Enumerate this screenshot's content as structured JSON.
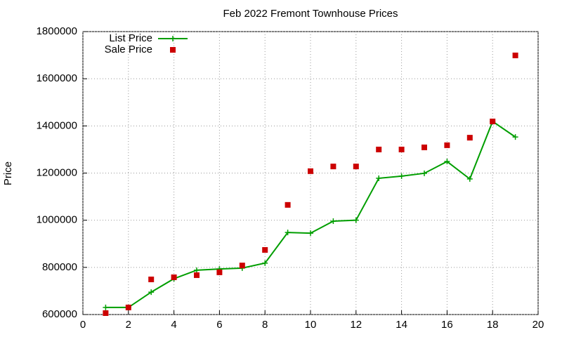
{
  "chart_data": {
    "type": "line",
    "title": "Feb 2022 Fremont Townhouse Prices",
    "y_label": "Price",
    "x": [
      1,
      2,
      3,
      4,
      5,
      6,
      7,
      8,
      9,
      10,
      11,
      12,
      13,
      14,
      15,
      16,
      17,
      18,
      19
    ],
    "series": [
      {
        "name": "List Price",
        "color": "#009e00",
        "line": true,
        "marker": "plus",
        "values": [
          630000,
          630000,
          695000,
          752000,
          788000,
          793000,
          797000,
          818000,
          948000,
          945000,
          996000,
          1000000,
          1178000,
          1187000,
          1199000,
          1249000,
          1175000,
          1419000,
          1353000
        ]
      },
      {
        "name": "Sale Price",
        "color": "#cc0000",
        "line": false,
        "marker": "square",
        "values": [
          606000,
          630000,
          749000,
          758000,
          767000,
          779000,
          808000,
          874000,
          1065000,
          1208000,
          1228000,
          1228000,
          1300000,
          1300000,
          1309000,
          1318000,
          1350000,
          1419000,
          1699000
        ]
      }
    ],
    "xlim": [
      0,
      20
    ],
    "xticks": [
      0,
      2,
      4,
      6,
      8,
      10,
      12,
      14,
      16,
      18,
      20
    ],
    "ylim": [
      600000,
      1800000
    ],
    "yticks": [
      600000,
      800000,
      1000000,
      1200000,
      1400000,
      1600000,
      1800000
    ],
    "grid": true,
    "legend": "top-left"
  }
}
